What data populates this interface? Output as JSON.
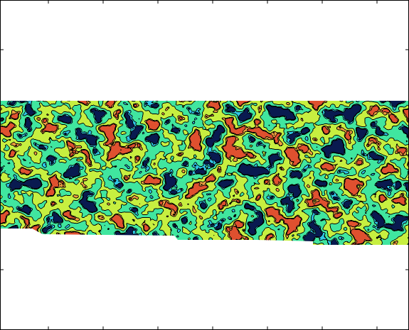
{
  "chart_data": {
    "type": "contour",
    "colors": [
      "#0a1a50",
      "#30c8e8",
      "#40e6a0",
      "#c8f040",
      "#f0a040",
      "#e05030"
    ]
  }
}
